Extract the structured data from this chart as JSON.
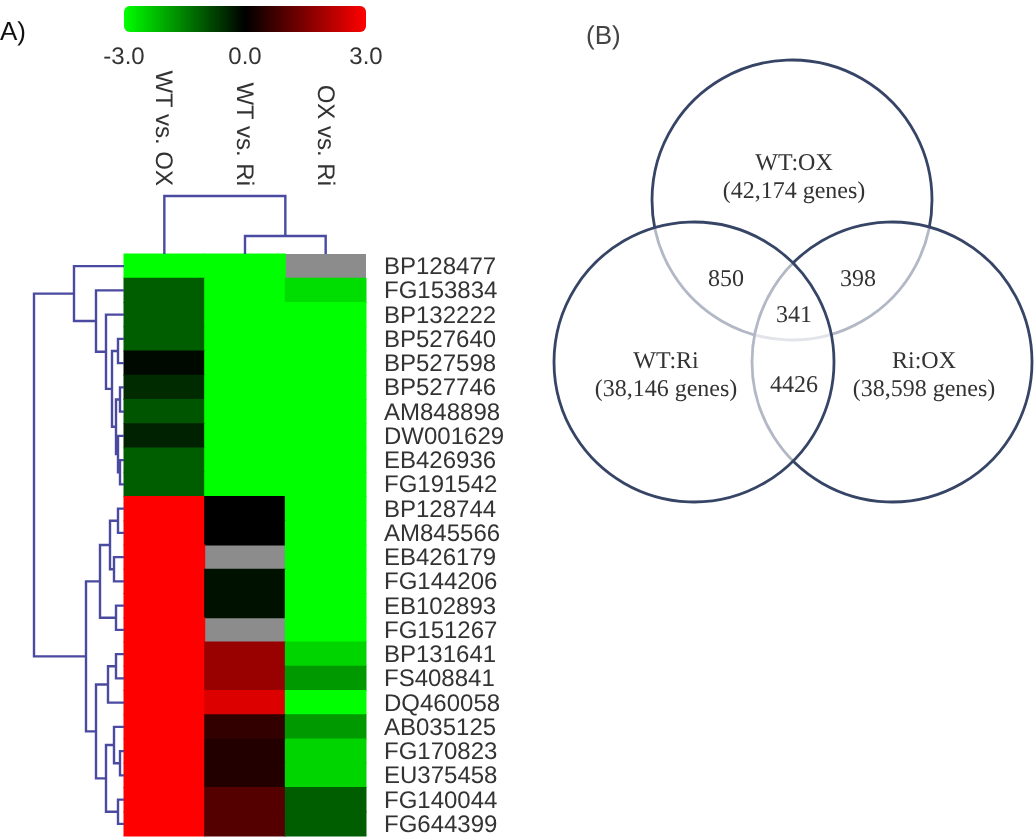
{
  "chart_data": [
    {
      "type": "heatmap",
      "title": "A)",
      "categories": [
        "WT vs. OX",
        "WT vs. Ri",
        "OX vs. Ri"
      ],
      "y_categories": [
        "BP128477",
        "FG153834",
        "BP132222",
        "BP527640",
        "BP527598",
        "BP527746",
        "AM848898",
        "DW001629",
        "EB426936",
        "FG191542",
        "BP128744",
        "AM845566",
        "EB426179",
        "FG144206",
        "EB102893",
        "FG151267",
        "BP131641",
        "FS408841",
        "DQ460058",
        "AB035125",
        "FG170823",
        "EU375458",
        "FG140044",
        "FG644399"
      ],
      "cells": [
        [
          -3,
          -3,
          null
        ],
        [
          -1.1,
          -3,
          -2.6
        ],
        [
          -1.1,
          -3,
          -3
        ],
        [
          -1.1,
          -3,
          -3
        ],
        [
          -0.1,
          -3,
          -3
        ],
        [
          -0.5,
          -3,
          -3
        ],
        [
          -1.0,
          -3,
          -3
        ],
        [
          -0.4,
          -3,
          -3
        ],
        [
          -1.1,
          -3,
          -3
        ],
        [
          -1.1,
          -3,
          -3
        ],
        [
          3,
          0,
          -3
        ],
        [
          3,
          0,
          -3
        ],
        [
          3,
          null,
          -3
        ],
        [
          3,
          -0.2,
          -3
        ],
        [
          3,
          -0.2,
          -3
        ],
        [
          3,
          null,
          -3
        ],
        [
          3,
          1.8,
          -2.5
        ],
        [
          3,
          1.8,
          -1.8
        ],
        [
          3,
          2.6,
          -3
        ],
        [
          3,
          0.6,
          -1.8
        ],
        [
          3,
          0.4,
          -2.5
        ],
        [
          3,
          0.4,
          -2.5
        ],
        [
          3,
          1.0,
          -1.1
        ],
        [
          3,
          1.0,
          -1.1
        ]
      ],
      "clim": [
        -3,
        3
      ],
      "cticks": [
        {
          "value": -3,
          "label": "-3.0"
        },
        {
          "value": 0,
          "label": "0.0"
        },
        {
          "value": 3,
          "label": "3.0"
        }
      ]
    },
    {
      "type": "other",
      "title": "(B)",
      "categories": [
        "WT:OX",
        "WT:Ri",
        "Ri:OX"
      ],
      "value_labels": [
        "(42,174 genes)",
        "(38,146 genes)",
        "(38,598 genes)"
      ],
      "annotations": [
        "850",
        "398",
        "4426",
        "341"
      ]
    }
  ]
}
